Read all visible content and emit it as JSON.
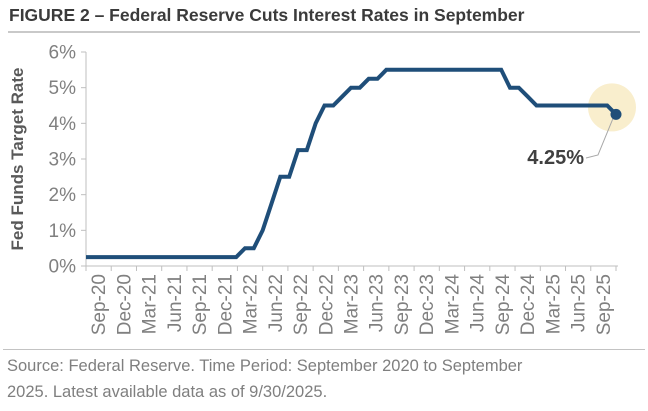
{
  "title": "FIGURE 2 – Federal Reserve Cuts Interest Rates in September",
  "footer": {
    "lines": [
      "Source: Federal Reserve. Time Period: September 2020 to September",
      "2025. Latest available data as of 9/30/2025."
    ]
  },
  "colors": {
    "line": "#1f4e79",
    "marker": "#1f4e79",
    "highlight_circle": "#f9eecd",
    "axis": "#bfbfbf",
    "tick_label": "#808080",
    "y_axis_title": "#595959",
    "annotation_text": "#404040",
    "callout_line": "#a8a8a8",
    "title_text": "#3b3b3b",
    "footer_text": "#7f7f7f"
  },
  "chart_data": {
    "type": "line",
    "style": "step-monthly",
    "title": "",
    "xlabel": "",
    "ylabel": "Fed Funds Target Rate",
    "unit": "%",
    "ylim": [
      0,
      6
    ],
    "y_ticks": [
      0,
      1,
      2,
      3,
      4,
      5,
      6
    ],
    "y_tick_suffix": "%",
    "grid": false,
    "legend": false,
    "frequency": "monthly",
    "x_start": "Sep-20",
    "x_end": "Sep-25",
    "x_tick_labels": [
      "Sep-20",
      "Dec-20",
      "Mar-21",
      "Jun-21",
      "Sep-21",
      "Dec-21",
      "Mar-22",
      "Jun-22",
      "Sep-22",
      "Dec-22",
      "Mar-23",
      "Jun-23",
      "Sep-23",
      "Dec-23",
      "Mar-24",
      "Jun-24",
      "Sep-24",
      "Dec-24",
      "Mar-25",
      "Jun-25",
      "Sep-25"
    ],
    "series": [
      {
        "name": "Fed Funds Target Rate",
        "values": [
          0.25,
          0.25,
          0.25,
          0.25,
          0.25,
          0.25,
          0.25,
          0.25,
          0.25,
          0.25,
          0.25,
          0.25,
          0.25,
          0.25,
          0.25,
          0.25,
          0.25,
          0.25,
          0.5,
          0.5,
          1.0,
          1.75,
          2.5,
          2.5,
          3.25,
          3.25,
          4.0,
          4.5,
          4.5,
          4.75,
          5.0,
          5.0,
          5.25,
          5.25,
          5.5,
          5.5,
          5.5,
          5.5,
          5.5,
          5.5,
          5.5,
          5.5,
          5.5,
          5.5,
          5.5,
          5.5,
          5.5,
          5.5,
          5.0,
          5.0,
          4.75,
          4.5,
          4.5,
          4.5,
          4.5,
          4.5,
          4.5,
          4.5,
          4.5,
          4.5,
          4.25
        ]
      }
    ],
    "step_changes": [
      {
        "month": "Sep-20",
        "value": 0.25
      },
      {
        "month": "Mar-22",
        "value": 0.5
      },
      {
        "month": "May-22",
        "value": 1.0
      },
      {
        "month": "Jun-22",
        "value": 1.75
      },
      {
        "month": "Jul-22",
        "value": 2.5
      },
      {
        "month": "Sep-22",
        "value": 3.25
      },
      {
        "month": "Nov-22",
        "value": 4.0
      },
      {
        "month": "Dec-22",
        "value": 4.5
      },
      {
        "month": "Feb-23",
        "value": 4.75
      },
      {
        "month": "Mar-23",
        "value": 5.0
      },
      {
        "month": "May-23",
        "value": 5.25
      },
      {
        "month": "Jul-23",
        "value": 5.5
      },
      {
        "month": "Sep-24",
        "value": 5.0
      },
      {
        "month": "Nov-24",
        "value": 4.75
      },
      {
        "month": "Dec-24",
        "value": 4.5
      },
      {
        "month": "Sep-25",
        "value": 4.25
      }
    ],
    "annotation": {
      "label": "4.25%",
      "x": "Sep-25",
      "value": 4.25
    }
  }
}
